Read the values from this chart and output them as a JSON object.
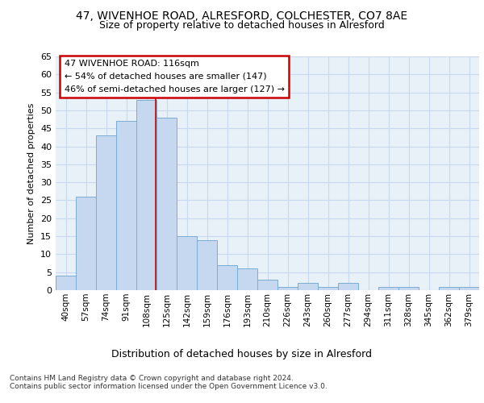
{
  "title1": "47, WIVENHOE ROAD, ALRESFORD, COLCHESTER, CO7 8AE",
  "title2": "Size of property relative to detached houses in Alresford",
  "xlabel": "Distribution of detached houses by size in Alresford",
  "ylabel": "Number of detached properties",
  "categories": [
    "40sqm",
    "57sqm",
    "74sqm",
    "91sqm",
    "108sqm",
    "125sqm",
    "142sqm",
    "159sqm",
    "176sqm",
    "193sqm",
    "210sqm",
    "226sqm",
    "243sqm",
    "260sqm",
    "277sqm",
    "294sqm",
    "311sqm",
    "328sqm",
    "345sqm",
    "362sqm",
    "379sqm"
  ],
  "values": [
    4,
    26,
    43,
    47,
    53,
    48,
    15,
    14,
    7,
    6,
    3,
    1,
    2,
    1,
    2,
    0,
    1,
    1,
    0,
    1,
    1
  ],
  "bar_color": "#c5d8f0",
  "bar_edge_color": "#7aadd4",
  "annotation_text": "47 WIVENHOE ROAD: 116sqm\n← 54% of detached houses are smaller (147)\n46% of semi-detached houses are larger (127) →",
  "annotation_box_color": "#ffffff",
  "annotation_box_edge_color": "#cc0000",
  "red_line_x": 4.47,
  "grid_color": "#c8d8ee",
  "background_color": "#ffffff",
  "axes_bg_color": "#e8f0f8",
  "ylim": [
    0,
    65
  ],
  "yticks": [
    0,
    5,
    10,
    15,
    20,
    25,
    30,
    35,
    40,
    45,
    50,
    55,
    60,
    65
  ],
  "footnote": "Contains HM Land Registry data © Crown copyright and database right 2024.\nContains public sector information licensed under the Open Government Licence v3.0."
}
